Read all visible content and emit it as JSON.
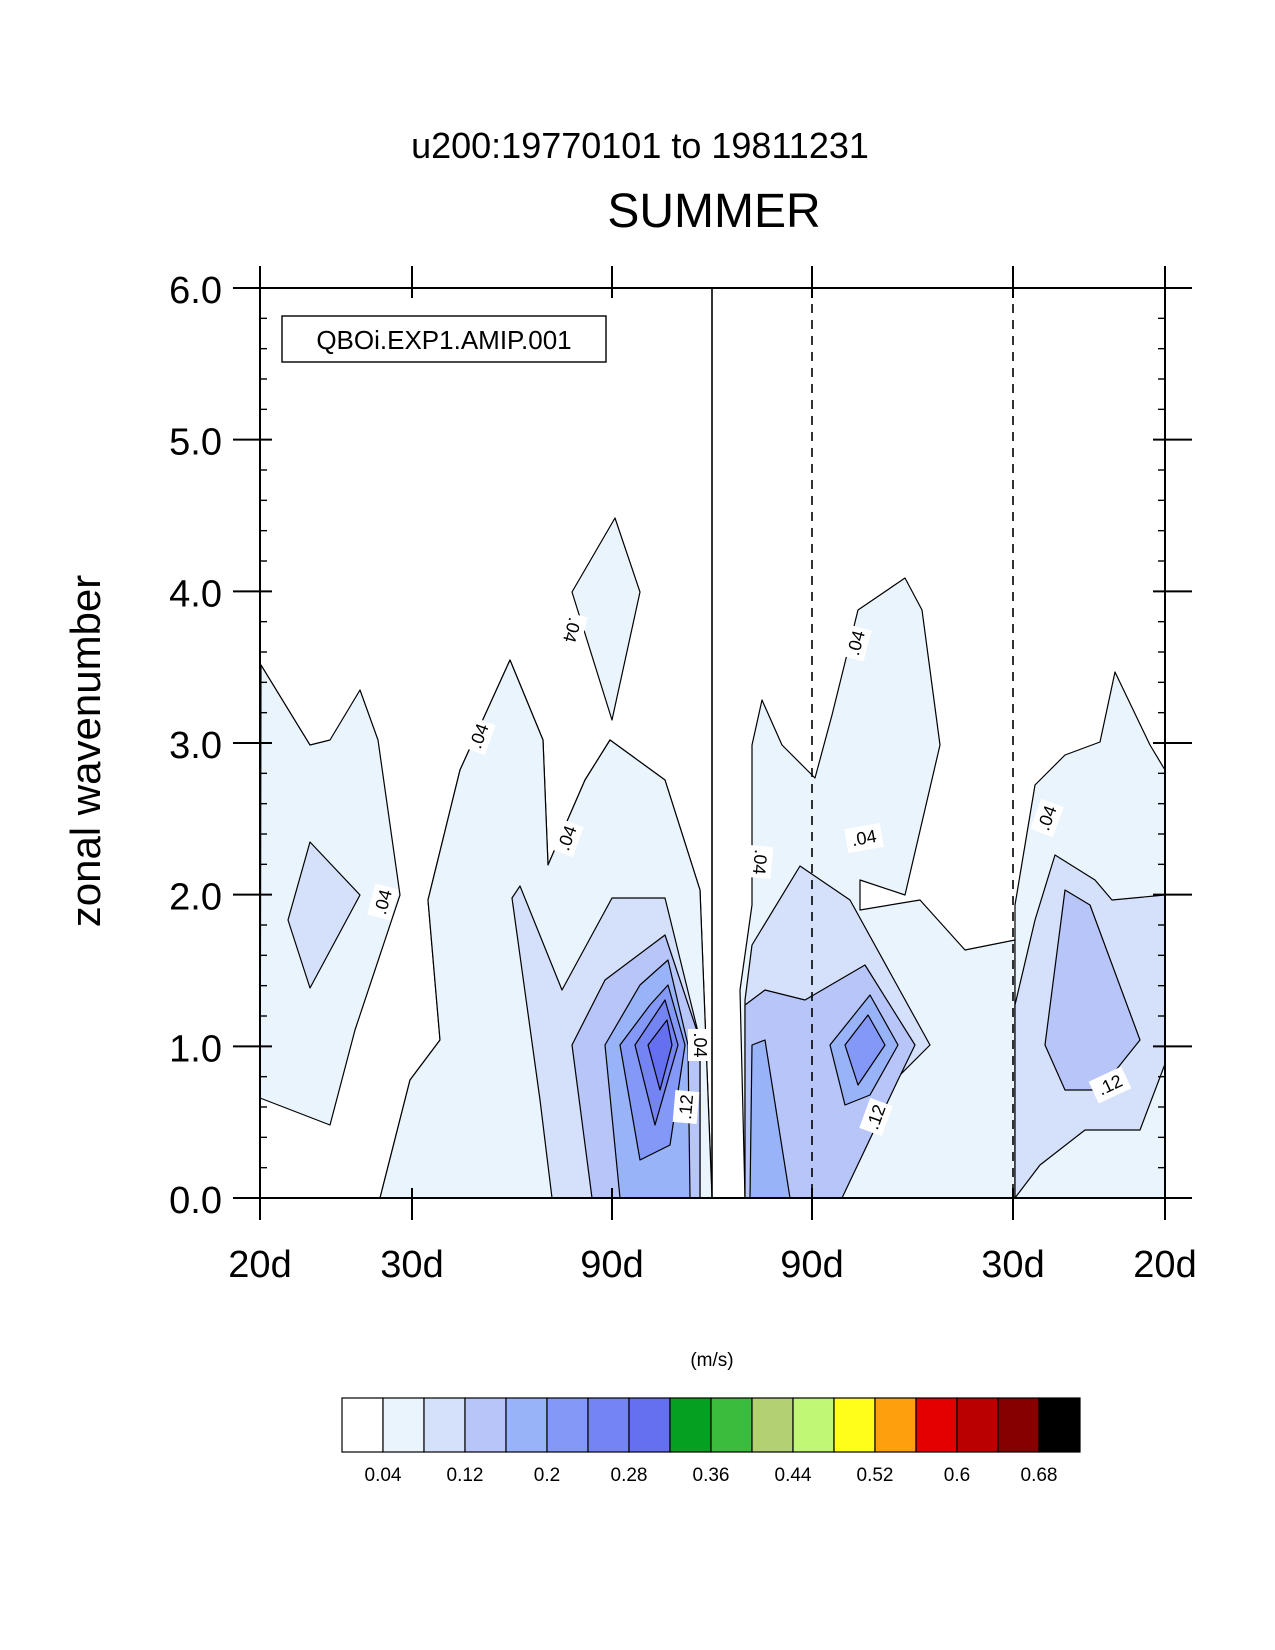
{
  "chart_data": {
    "type": "contour",
    "supertitle": "u200:19770101 to 19811231",
    "title": "SUMMER",
    "ylabel": "zonal wavenumber",
    "ylim": [
      0,
      6
    ],
    "yticks": [
      "0.0",
      "1.0",
      "2.0",
      "3.0",
      "4.0",
      "5.0",
      "6.0"
    ],
    "xticks": [
      "20d",
      "30d",
      "90d",
      "90d",
      "30d",
      "20d"
    ],
    "experiment_label": "QBOi.EXP1.AMIP.001",
    "units_label": "(m/s)",
    "contour_labels": [
      ".04",
      ".04",
      ".04",
      ".04",
      ".04",
      ".04",
      ".04",
      ".04",
      ".04",
      ".12",
      ".12",
      ".12"
    ],
    "contour_levels": [
      "0.04",
      "0.12",
      "0.2",
      "0.28",
      "0.36",
      "0.44",
      "0.52",
      "0.6",
      "0.68"
    ],
    "colorbar_colors": [
      "#ffffff",
      "#eaf4fd",
      "#d5e0fa",
      "#b7c5f8",
      "#98b3f8",
      "#8498f8",
      "#7484f3",
      "#6470f0",
      "#05a022",
      "#3cbc3d",
      "#b3d172",
      "#c0f876",
      "#fefe1a",
      "#fea00d",
      "#e40000",
      "#bb0000",
      "#860000",
      "#000000"
    ],
    "max_value_approx": 0.28
  }
}
